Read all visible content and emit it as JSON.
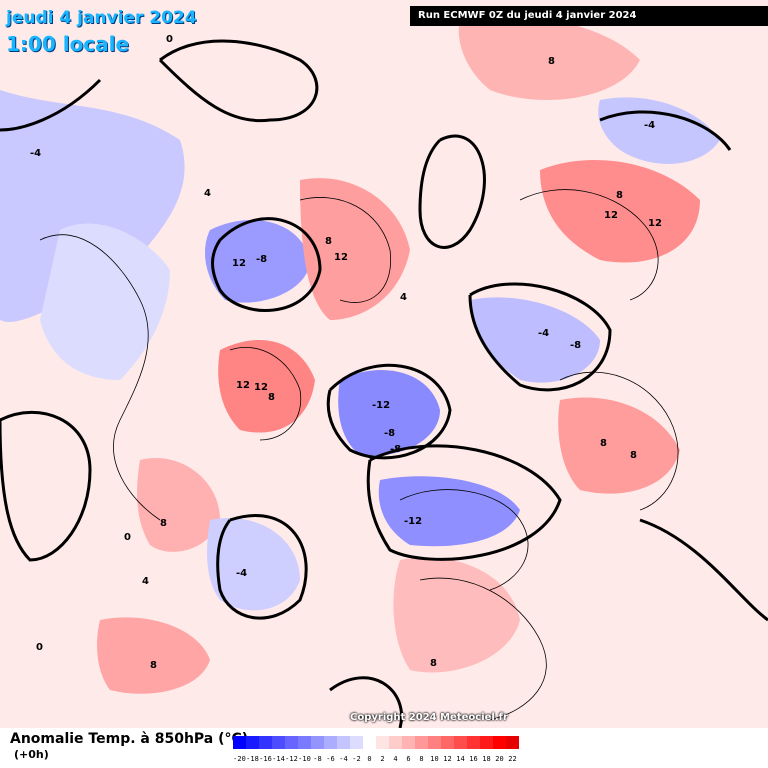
{
  "title": {
    "date": "jeudi 4 janvier 2024",
    "time": "1:00 locale"
  },
  "run_info": "Run ECMWF 0Z du jeudi 4 janvier 2024",
  "copyright": "Copyright 2024 Meteociel.fr",
  "legend": {
    "title": "Anomalie Temp. à 850hPa (°C)",
    "subtitle": "(+0h)",
    "ticks": [
      "-20",
      "-18",
      "-16",
      "-14",
      "-12",
      "-10",
      "-8",
      "-6",
      "-4",
      "-2",
      "0",
      "2",
      "4",
      "6",
      "8",
      "10",
      "12",
      "14",
      "16",
      "18",
      "20",
      "22"
    ],
    "colors": [
      "#0000ff",
      "#1a1aff",
      "#3333ff",
      "#4d4dff",
      "#6666ff",
      "#7a7aff",
      "#9494ff",
      "#adadff",
      "#c4c4ff",
      "#dcdcff",
      "#ffffff",
      "#ffe4e4",
      "#ffcccc",
      "#ffb3b3",
      "#ff9999",
      "#ff8080",
      "#ff6666",
      "#ff4d4d",
      "#ff3333",
      "#ff1a1a",
      "#ff0000",
      "#e60000"
    ]
  },
  "map_labels": {
    "l1": "12",
    "l2": "-8",
    "l3": "-8",
    "l4": "12",
    "l5": "12",
    "l6": "8",
    "l7": "12",
    "l8": "12",
    "l9": "-12",
    "l10": "-8",
    "l11": "8",
    "l12": "-12",
    "l13": "8",
    "l14": "12",
    "l15": "-4",
    "l16": "-4",
    "l17": "8",
    "l18": "-8",
    "l19": "8",
    "l20": "8",
    "l21": "8",
    "l22": "4",
    "l23": "4",
    "l24": "0",
    "l25": "0",
    "l26": "8",
    "l27": "-4",
    "l28": "4",
    "l29": "-4",
    "l30": "8",
    "l31": "0"
  }
}
